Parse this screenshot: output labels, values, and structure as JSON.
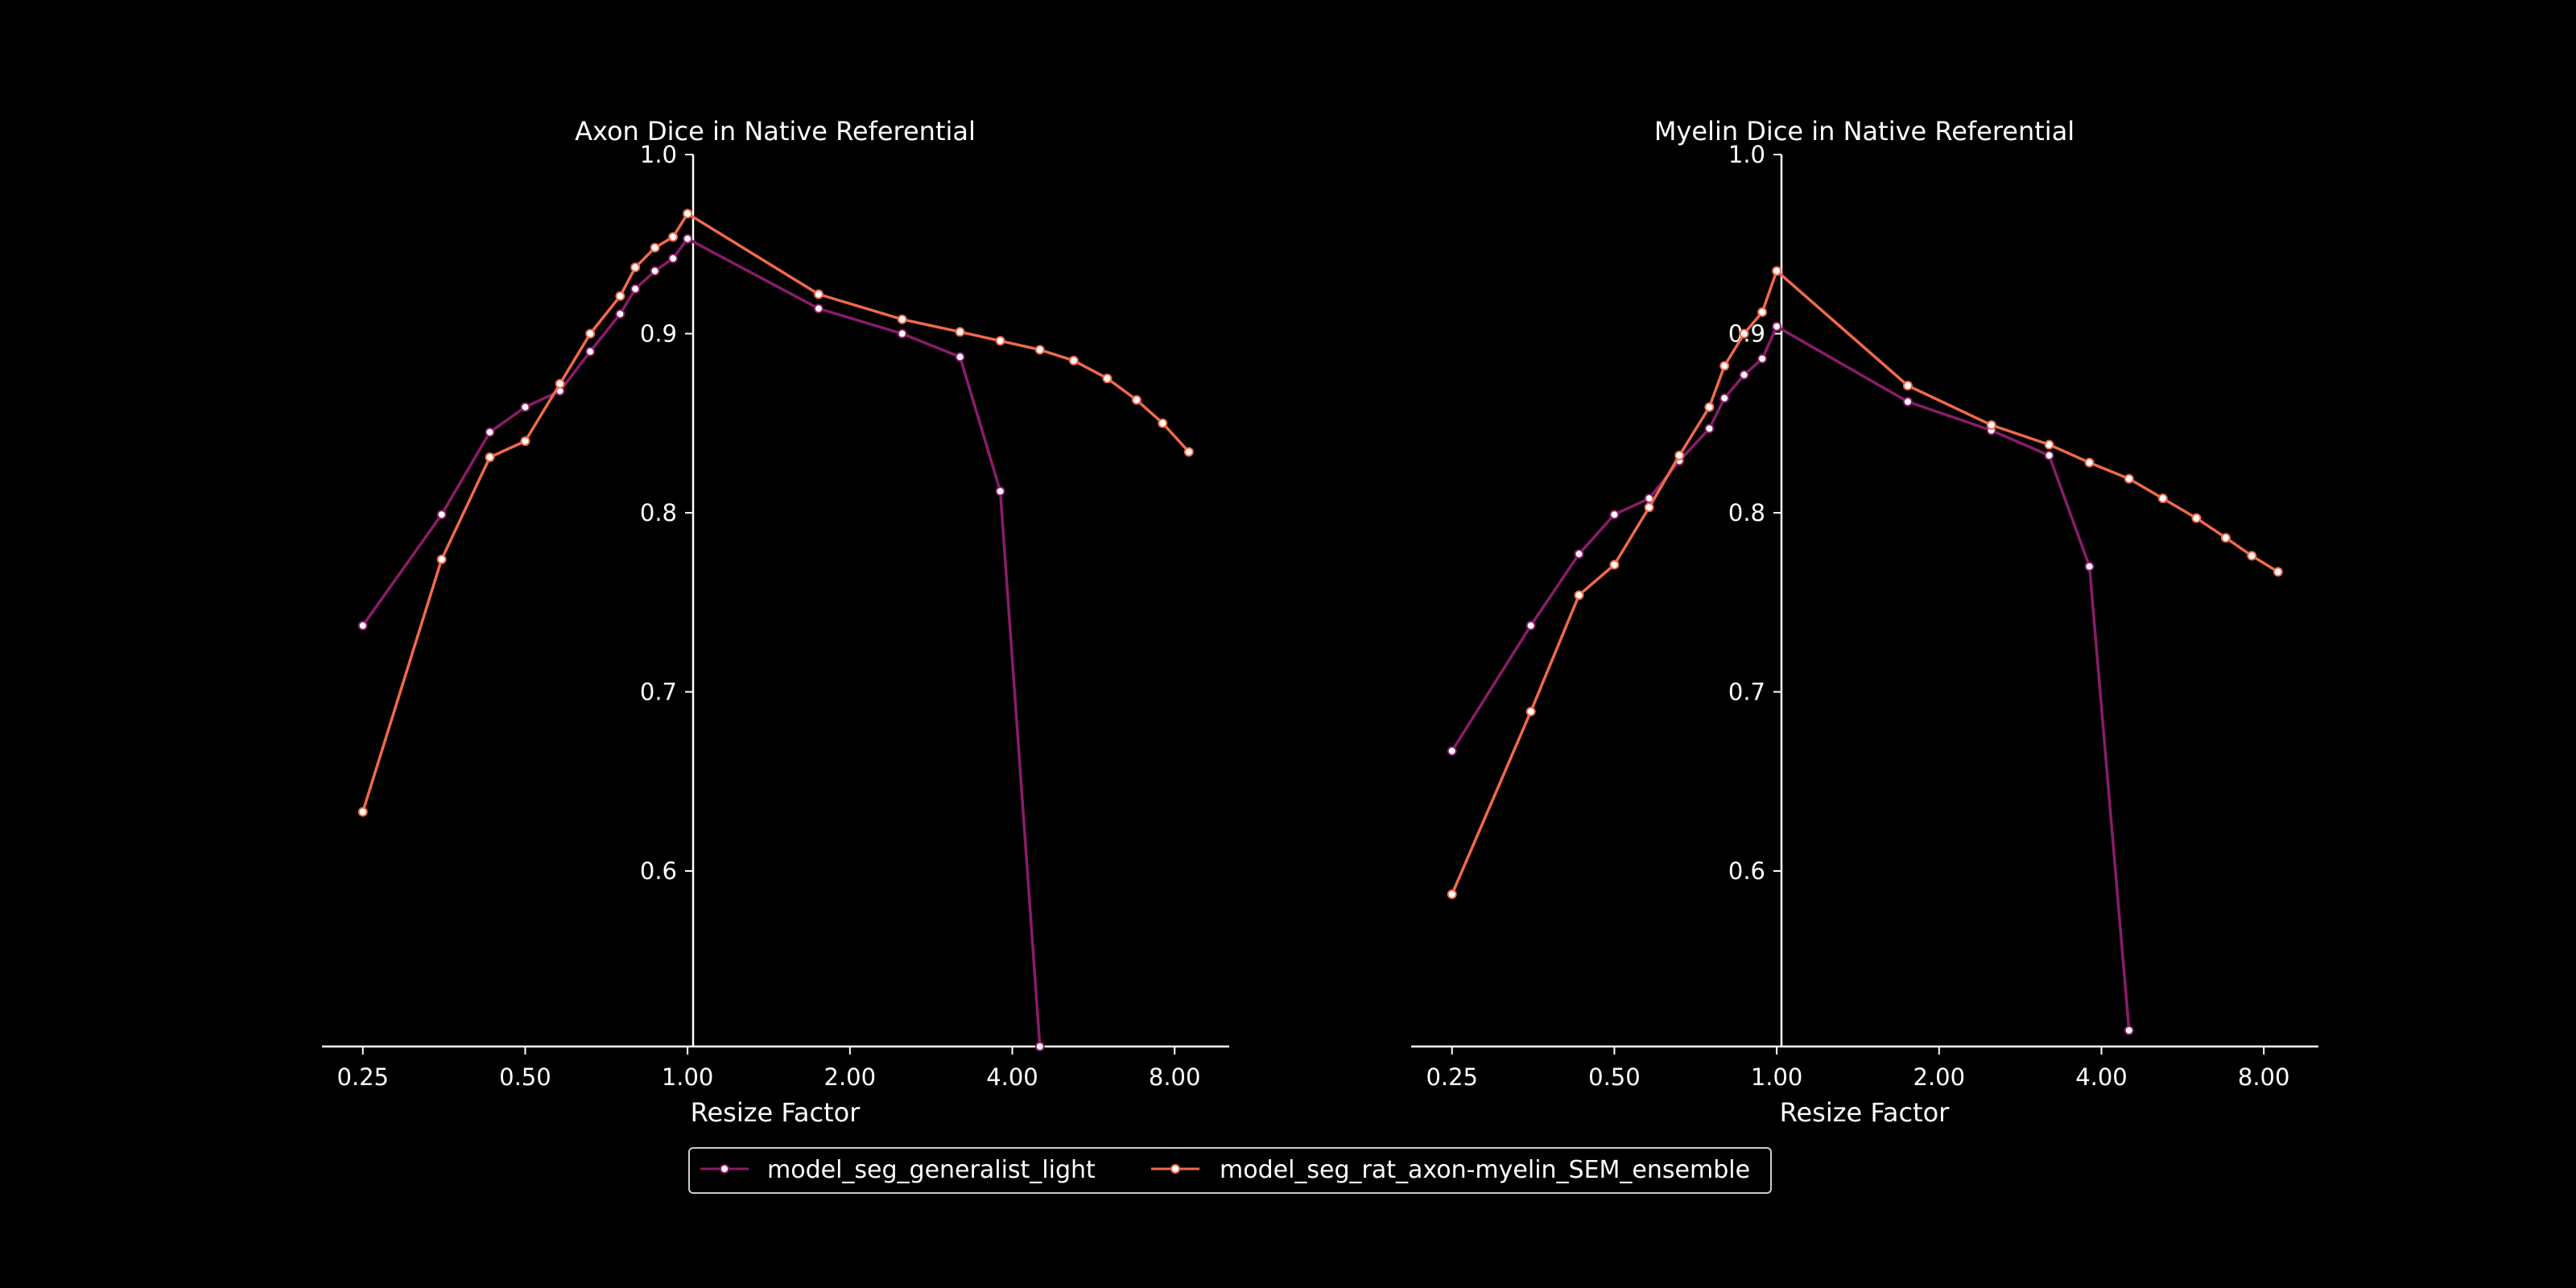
{
  "colors": {
    "background": "#000000",
    "axes": "#ffffff",
    "marker_face": "#ffffff",
    "generalist": "#8a1c6b",
    "ensemble": "#f06a4a"
  },
  "legend": {
    "placement": "bottom-center",
    "entries": [
      "model_seg_generalist_light",
      "model_seg_rat_axon-myelin_SEM_ensemble"
    ]
  },
  "chart_data": [
    {
      "type": "line",
      "title": "Axon Dice in Native Referential",
      "xlabel": "Resize Factor",
      "ylabel": "",
      "x_scale": "log2",
      "xlim": [
        0.21,
        10.1
      ],
      "ylim": [
        0.502,
        1.0
      ],
      "xticks": [
        0.25,
        0.5,
        1.0,
        2.0,
        4.0,
        8.0
      ],
      "xtick_labels": [
        "0.25",
        "0.50",
        "1.00",
        "2.00",
        "4.00",
        "8.00"
      ],
      "yticks": [
        0.6,
        0.7,
        0.8,
        0.9,
        1.0
      ],
      "ytick_labels": [
        "0.6",
        "0.7",
        "0.8",
        "0.9",
        "1.0"
      ],
      "grid": false,
      "series": [
        {
          "name": "model_seg_generalist_light",
          "color": "#8a1c6b",
          "x": [
            0.25,
            0.35,
            0.43,
            0.5,
            0.58,
            0.66,
            0.75,
            0.8,
            0.87,
            0.94,
            1.0,
            1.75,
            2.5,
            3.2,
            3.8,
            4.5
          ],
          "y": [
            0.737,
            0.799,
            0.845,
            0.859,
            0.868,
            0.89,
            0.911,
            0.925,
            0.935,
            0.942,
            0.953,
            0.914,
            0.9,
            0.887,
            0.812,
            0.502
          ]
        },
        {
          "name": "model_seg_rat_axon-myelin_SEM_ensemble",
          "color": "#f06a4a",
          "x": [
            0.25,
            0.35,
            0.43,
            0.5,
            0.58,
            0.66,
            0.75,
            0.8,
            0.87,
            0.94,
            1.0,
            1.75,
            2.5,
            3.2,
            3.8,
            4.5,
            5.2,
            6.0,
            6.8,
            7.6,
            8.5
          ],
          "y": [
            0.633,
            0.774,
            0.831,
            0.84,
            0.872,
            0.9,
            0.921,
            0.937,
            0.948,
            0.954,
            0.967,
            0.922,
            0.908,
            0.901,
            0.896,
            0.891,
            0.885,
            0.875,
            0.863,
            0.85,
            0.834
          ]
        }
      ]
    },
    {
      "type": "line",
      "title": "Myelin Dice in Native Referential",
      "xlabel": "Resize Factor",
      "ylabel": "",
      "x_scale": "log2",
      "xlim": [
        0.21,
        10.1
      ],
      "ylim": [
        0.502,
        1.0
      ],
      "xticks": [
        0.25,
        0.5,
        1.0,
        2.0,
        4.0,
        8.0
      ],
      "xtick_labels": [
        "0.25",
        "0.50",
        "1.00",
        "2.00",
        "4.00",
        "8.00"
      ],
      "yticks": [
        0.6,
        0.7,
        0.8,
        0.9,
        1.0
      ],
      "ytick_labels": [
        "0.6",
        "0.7",
        "0.8",
        "0.9",
        "1.0"
      ],
      "grid": false,
      "series": [
        {
          "name": "model_seg_generalist_light",
          "color": "#8a1c6b",
          "x": [
            0.25,
            0.35,
            0.43,
            0.5,
            0.58,
            0.66,
            0.75,
            0.8,
            0.87,
            0.94,
            1.0,
            1.75,
            2.5,
            3.2,
            3.8,
            4.5
          ],
          "y": [
            0.667,
            0.737,
            0.777,
            0.799,
            0.808,
            0.829,
            0.847,
            0.864,
            0.877,
            0.886,
            0.904,
            0.862,
            0.846,
            0.832,
            0.77,
            0.511
          ]
        },
        {
          "name": "model_seg_rat_axon-myelin_SEM_ensemble",
          "color": "#f06a4a",
          "x": [
            0.25,
            0.35,
            0.43,
            0.5,
            0.58,
            0.66,
            0.75,
            0.8,
            0.87,
            0.94,
            1.0,
            1.75,
            2.5,
            3.2,
            3.8,
            4.5,
            5.2,
            6.0,
            6.8,
            7.6,
            8.5
          ],
          "y": [
            0.587,
            0.689,
            0.754,
            0.771,
            0.803,
            0.832,
            0.859,
            0.882,
            0.9,
            0.912,
            0.935,
            0.871,
            0.849,
            0.838,
            0.828,
            0.819,
            0.808,
            0.797,
            0.786,
            0.776,
            0.767
          ]
        }
      ]
    }
  ]
}
